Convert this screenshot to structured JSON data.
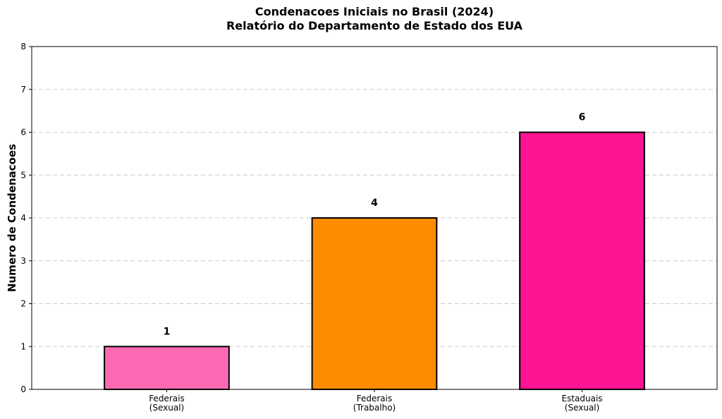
{
  "chart_data": {
    "type": "bar",
    "title": "Condenacoes Iniciais no Brasil (2024)",
    "subtitle": "Relatório do Departamento de Estado dos EUA",
    "xlabel": "",
    "ylabel": "Numero de Condenacoes",
    "categories": [
      [
        "Federais",
        "(Sexual)"
      ],
      [
        "Federais",
        "(Trabalho)"
      ],
      [
        "Estaduais",
        "(Sexual)"
      ]
    ],
    "values": [
      1,
      4,
      6
    ],
    "value_labels": [
      "1",
      "4",
      "6"
    ],
    "colors": [
      "#ff69b4",
      "#ff8c00",
      "#ff1493"
    ],
    "ylim": [
      0,
      8
    ],
    "yticks": [
      0,
      1,
      2,
      3,
      4,
      5,
      6,
      7,
      8
    ],
    "grid": "y-dashed",
    "legend": "none"
  }
}
